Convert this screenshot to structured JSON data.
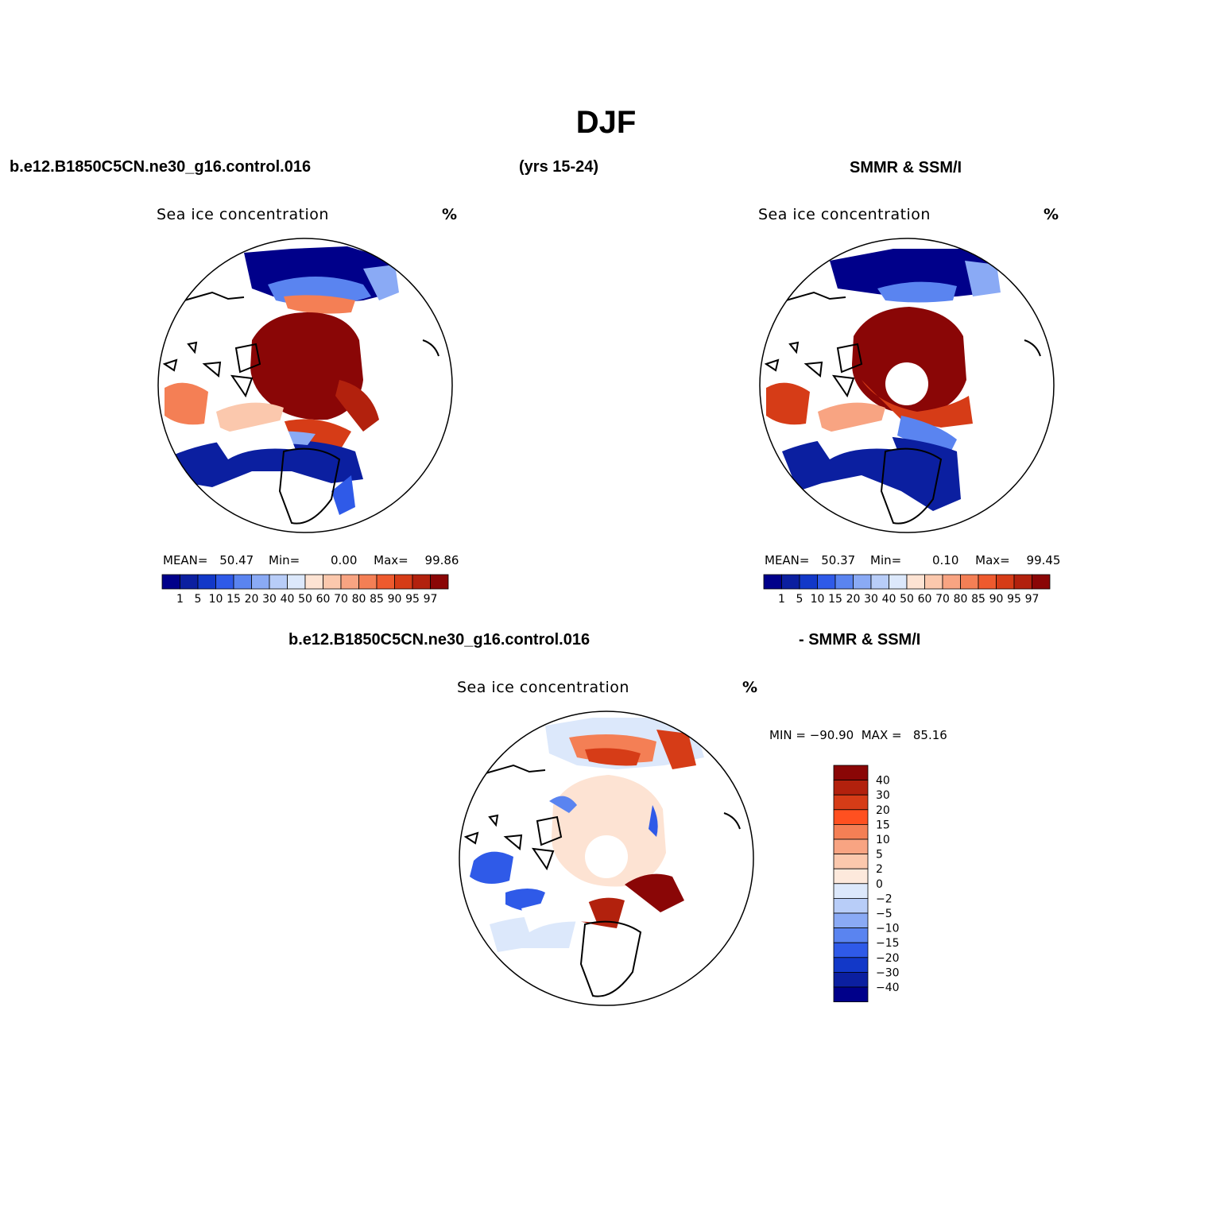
{
  "title": "DJF",
  "header": {
    "left": "b.e12.B1850C5CN.ne30_g16.control.016",
    "middle": "(yrs 15-24)",
    "right": "SMMR & SSM/I"
  },
  "diff_header": {
    "left": "b.e12.B1850C5CN.ne30_g16.control.016",
    "right": "- SMMR & SSM/I"
  },
  "panels": {
    "model": {
      "variable": "Sea ice concentration",
      "units": "%",
      "mean_label": "MEAN=",
      "mean": "50.47",
      "min_label": "Min=",
      "min": "0.00",
      "max_label": "Max=",
      "max": "99.86"
    },
    "obs": {
      "variable": "Sea ice concentration",
      "units": "%",
      "mean_label": "MEAN=",
      "mean": "50.37",
      "min_label": "Min=",
      "min": "0.10",
      "max_label": "Max=",
      "max": "99.45"
    },
    "diff": {
      "variable": "Sea ice concentration",
      "units": "%",
      "minmax_text": "MIN = −90.90  MAX =   85.16"
    }
  },
  "colorbar_main": {
    "labels": [
      "1",
      "5",
      "10",
      "15",
      "20",
      "30",
      "40",
      "50",
      "60",
      "70",
      "80",
      "85",
      "90",
      "95",
      "97"
    ],
    "colors": [
      "#00008a",
      "#0b1fa0",
      "#1238c8",
      "#2f5ae8",
      "#5a84f0",
      "#8aaaf5",
      "#b8cdf8",
      "#dce8fb",
      "#fde3d3",
      "#fbc8ad",
      "#f8a482",
      "#f47f55",
      "#ee5a2e",
      "#d63c17",
      "#b2210d",
      "#8a0606"
    ]
  },
  "colorbar_diff": {
    "labels": [
      "40",
      "30",
      "20",
      "15",
      "10",
      "5",
      "2",
      "0",
      "−2",
      "−5",
      "−10",
      "−15",
      "−20",
      "−30",
      "−40"
    ],
    "colors": [
      "#8a0606",
      "#b2210d",
      "#d63c17",
      "#ff5020",
      "#f47f55",
      "#f8a482",
      "#fbc8ad",
      "#fde9dc",
      "#dce8fb",
      "#b8cdf8",
      "#8aaaf5",
      "#5a84f0",
      "#2f5ae8",
      "#1238c8",
      "#0b1fa0",
      "#00008a"
    ]
  }
}
